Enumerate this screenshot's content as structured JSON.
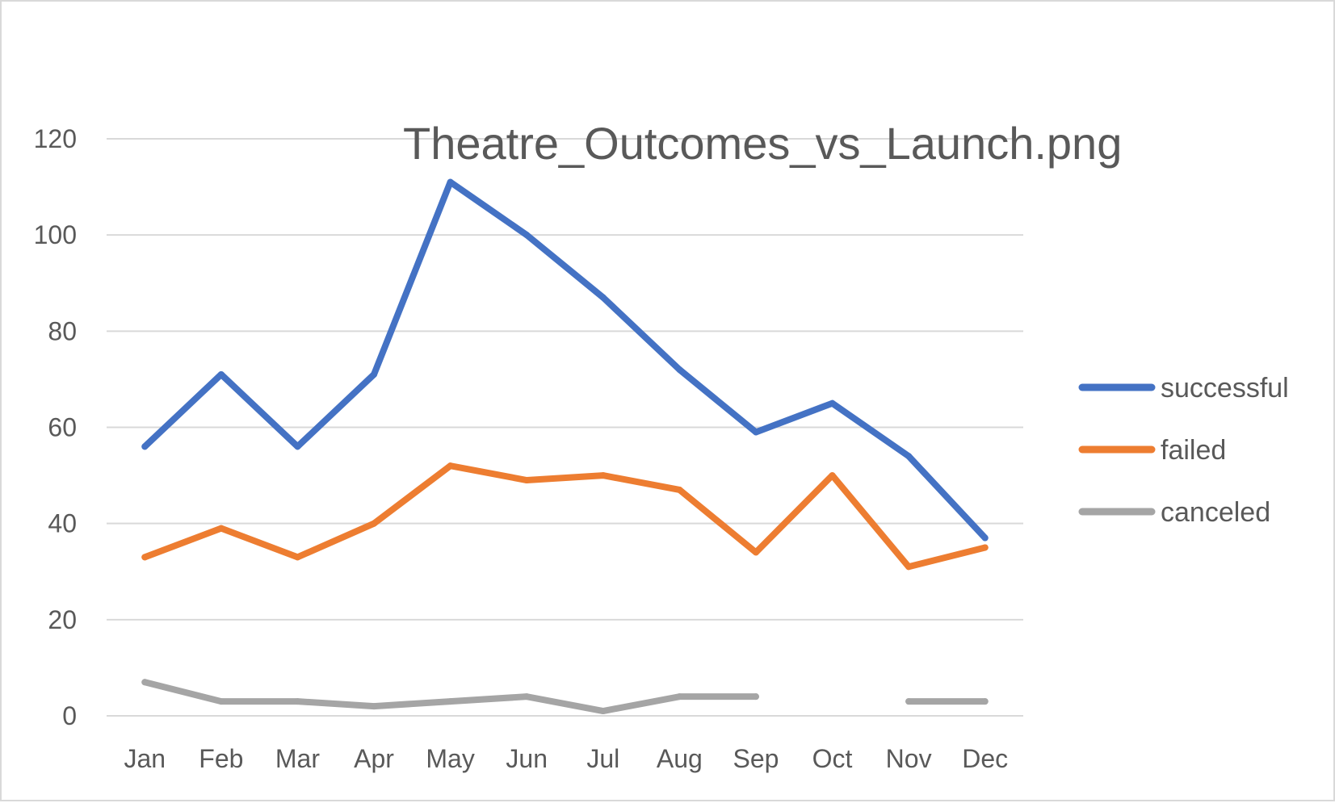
{
  "chart_data": {
    "type": "line",
    "title": "Theatre_Outcomes_vs_Launch.png",
    "xlabel": "",
    "ylabel": "",
    "categories": [
      "Jan",
      "Feb",
      "Mar",
      "Apr",
      "May",
      "Jun",
      "Jul",
      "Aug",
      "Sep",
      "Oct",
      "Nov",
      "Dec"
    ],
    "ylim": [
      0,
      120
    ],
    "yticks": [
      0,
      20,
      40,
      60,
      80,
      100,
      120
    ],
    "grid": true,
    "legend_position": "right",
    "series": [
      {
        "name": "successful",
        "color": "#4472c4",
        "values": [
          56,
          71,
          56,
          71,
          111,
          100,
          87,
          72,
          59,
          65,
          54,
          37
        ]
      },
      {
        "name": "failed",
        "color": "#ed7d31",
        "values": [
          33,
          39,
          33,
          40,
          52,
          49,
          50,
          47,
          34,
          50,
          31,
          35
        ]
      },
      {
        "name": "canceled",
        "color": "#a5a5a5",
        "values": [
          7,
          3,
          3,
          2,
          3,
          4,
          1,
          4,
          4,
          null,
          3,
          3
        ]
      }
    ]
  }
}
